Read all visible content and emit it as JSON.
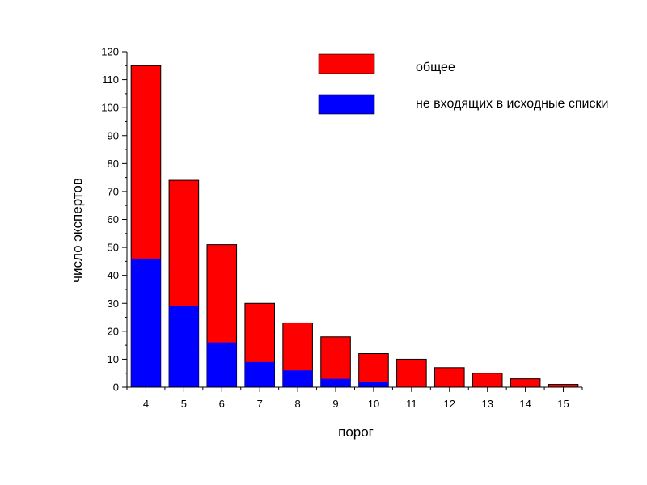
{
  "chart_data": {
    "type": "bar",
    "stacking": "overlay",
    "categories": [
      "4",
      "5",
      "6",
      "7",
      "8",
      "9",
      "10",
      "11",
      "12",
      "13",
      "14",
      "15"
    ],
    "series": [
      {
        "name": "общее",
        "color": "#ff0000",
        "values": [
          115,
          74,
          51,
          30,
          23,
          18,
          12,
          10,
          7,
          5,
          3,
          1
        ]
      },
      {
        "name": "не входящих в исходные списки",
        "color": "#0000ff",
        "values": [
          46,
          29,
          16,
          9,
          6,
          3,
          2,
          0,
          0,
          0,
          0,
          0
        ]
      }
    ],
    "xlabel": "порог",
    "ylabel": "число экспертов",
    "ylim": [
      0,
      120
    ],
    "yticks": [
      "0",
      "10",
      "20",
      "30",
      "40",
      "50",
      "60",
      "70",
      "80",
      "90",
      "100",
      "110",
      "120"
    ],
    "grid": false,
    "legend_position": "top-right"
  }
}
